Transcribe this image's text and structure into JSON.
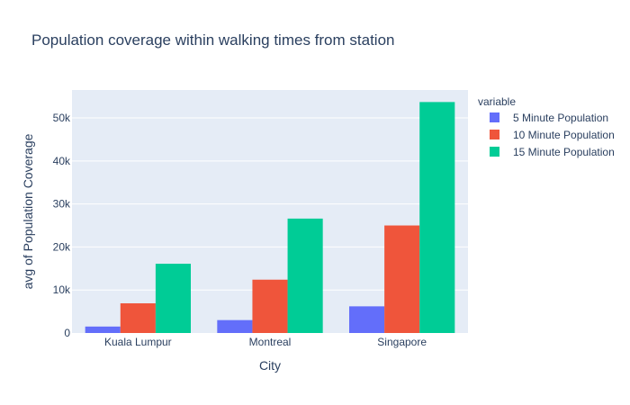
{
  "chart_data": {
    "type": "bar",
    "title": "Population coverage within walking times from station",
    "xlabel": "City",
    "ylabel": "avg of Population Coverage",
    "categories": [
      "Kuala Lumpur",
      "Montreal",
      "Singapore"
    ],
    "series": [
      {
        "name": "5 Minute Population",
        "color": "#636efa",
        "values": [
          1500,
          3000,
          6200
        ]
      },
      {
        "name": "10 Minute Population",
        "color": "#ef553b",
        "values": [
          6900,
          12400,
          25000
        ]
      },
      {
        "name": "15 Minute Population",
        "color": "#00cc96",
        "values": [
          16100,
          26600,
          53700
        ]
      }
    ],
    "ylim": [
      0,
      56500
    ],
    "yticks": [
      0,
      10000,
      20000,
      30000,
      40000,
      50000
    ],
    "ytick_labels": [
      "0",
      "10k",
      "20k",
      "30k",
      "40k",
      "50k"
    ],
    "legend": {
      "title": "variable",
      "placement": "top-right"
    },
    "grid": true,
    "plot_background": "#e5ecf6",
    "grid_color": "#ffffff"
  }
}
